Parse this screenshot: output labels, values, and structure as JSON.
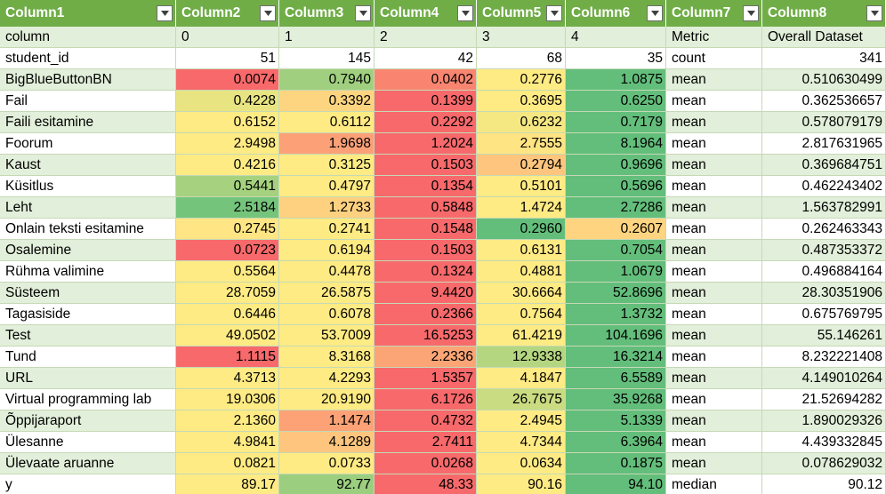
{
  "headers": [
    "Column1",
    "Column2",
    "Column3",
    "Column4",
    "Column5",
    "Column6",
    "Column7",
    "Column8"
  ],
  "rows": [
    [
      "column",
      "0",
      "1",
      "2",
      "3",
      "4",
      "Metric",
      "Overall Dataset"
    ],
    [
      "student_id",
      "51",
      "145",
      "42",
      "68",
      "35",
      "count",
      "341"
    ],
    [
      "BigBlueButtonBN",
      "0.0074",
      "0.7940",
      "0.0402",
      "0.2776",
      "1.0875",
      "mean",
      "0.510630499"
    ],
    [
      "Fail",
      "0.4228",
      "0.3392",
      "0.1399",
      "0.3695",
      "0.6250",
      "mean",
      "0.362536657"
    ],
    [
      "Faili esitamine",
      "0.6152",
      "0.6112",
      "0.2292",
      "0.6232",
      "0.7179",
      "mean",
      "0.578079179"
    ],
    [
      "Foorum",
      "2.9498",
      "1.9698",
      "1.2024",
      "2.7555",
      "8.1964",
      "mean",
      "2.817631965"
    ],
    [
      "Kaust",
      "0.4216",
      "0.3125",
      "0.1503",
      "0.2794",
      "0.9696",
      "mean",
      "0.369684751"
    ],
    [
      "Küsitlus",
      "0.5441",
      "0.4797",
      "0.1354",
      "0.5101",
      "0.5696",
      "mean",
      "0.462243402"
    ],
    [
      "Leht",
      "2.5184",
      "1.2733",
      "0.5848",
      "1.4724",
      "2.7286",
      "mean",
      "1.563782991"
    ],
    [
      "Onlain teksti esitamine",
      "0.2745",
      "0.2741",
      "0.1548",
      "0.2960",
      "0.2607",
      "mean",
      "0.262463343"
    ],
    [
      "Osalemine",
      "0.0723",
      "0.6194",
      "0.1503",
      "0.6131",
      "0.7054",
      "mean",
      "0.487353372"
    ],
    [
      "Rühma valimine",
      "0.5564",
      "0.4478",
      "0.1324",
      "0.4881",
      "1.0679",
      "mean",
      "0.496884164"
    ],
    [
      "Süsteem",
      "28.7059",
      "26.5875",
      "9.4420",
      "30.6664",
      "52.8696",
      "mean",
      "28.30351906"
    ],
    [
      "Tagasiside",
      "0.6446",
      "0.6078",
      "0.2366",
      "0.7564",
      "1.3732",
      "mean",
      "0.675769795"
    ],
    [
      "Test",
      "49.0502",
      "53.7009",
      "16.5253",
      "61.4219",
      "104.1696",
      "mean",
      "55.146261"
    ],
    [
      "Tund",
      "1.1115",
      "8.3168",
      "2.2336",
      "12.9338",
      "16.3214",
      "mean",
      "8.232221408"
    ],
    [
      "URL",
      "4.3713",
      "4.2293",
      "1.5357",
      "4.1847",
      "6.5589",
      "mean",
      "4.149010264"
    ],
    [
      "Virtual programming lab",
      "19.0306",
      "20.9190",
      "6.1726",
      "26.7675",
      "35.9268",
      "mean",
      "21.52694282"
    ],
    [
      "Õppijaraport",
      "2.1360",
      "1.1474",
      "0.4732",
      "2.4945",
      "5.1339",
      "mean",
      "1.890029326"
    ],
    [
      "Ülesanne",
      "4.9841",
      "4.1289",
      "2.7411",
      "4.7344",
      "6.3964",
      "mean",
      "4.439332845"
    ],
    [
      "Ülevaate aruanne",
      "0.0821",
      "0.0733",
      "0.0268",
      "0.0634",
      "0.1875",
      "mean",
      "0.078629032"
    ],
    [
      "y",
      "89.17",
      "92.77",
      "48.33",
      "90.16",
      "94.10",
      "median",
      "90.12"
    ]
  ],
  "heat_colors": [
    null,
    null,
    [
      "#f8696b",
      "#a0d07f",
      "#f98570",
      "#ffeb84",
      "#63be7b"
    ],
    [
      "#e8e482",
      "#fdd580",
      "#f8696b",
      "#ffeb84",
      "#63be7b"
    ],
    [
      "#ffeb84",
      "#ffeb84",
      "#f8696b",
      "#f5e883",
      "#63be7b"
    ],
    [
      "#ffeb84",
      "#fca077",
      "#f8696b",
      "#ffe483",
      "#63be7b"
    ],
    [
      "#ffeb84",
      "#ffeb84",
      "#f8696b",
      "#fdc57d",
      "#63be7b"
    ],
    [
      "#a6d27f",
      "#ffeb84",
      "#f8696b",
      "#ffeb84",
      "#63be7b"
    ],
    [
      "#75c47c",
      "#fdd17f",
      "#f8696b",
      "#ffeb84",
      "#63be7b"
    ],
    [
      "#ffe583",
      "#ffeb84",
      "#f8696b",
      "#63be7b",
      "#fed480"
    ],
    [
      "#f8696b",
      "#ffeb84",
      "#f8696b",
      "#ffeb84",
      "#63be7b"
    ],
    [
      "#ffeb84",
      "#ffeb84",
      "#f8696b",
      "#ffeb84",
      "#63be7b"
    ],
    [
      "#ffeb84",
      "#ffeb84",
      "#f8696b",
      "#ffeb84",
      "#63be7b"
    ],
    [
      "#ffeb84",
      "#ffeb84",
      "#f8696b",
      "#ffeb84",
      "#63be7b"
    ],
    [
      "#ffeb84",
      "#ffeb84",
      "#f8696b",
      "#ffeb84",
      "#63be7b"
    ],
    [
      "#f8696b",
      "#ffeb84",
      "#fba576",
      "#b5d680",
      "#63be7b"
    ],
    [
      "#ffeb84",
      "#ffeb84",
      "#f8696b",
      "#ffeb84",
      "#63be7b"
    ],
    [
      "#ffeb84",
      "#ffeb84",
      "#f8696b",
      "#c9dc81",
      "#63be7b"
    ],
    [
      "#ffeb84",
      "#fca276",
      "#f8696b",
      "#ffeb84",
      "#63be7b"
    ],
    [
      "#ffeb84",
      "#fdc57d",
      "#f8696b",
      "#ffeb84",
      "#63be7b"
    ],
    [
      "#ffeb84",
      "#ffeb84",
      "#f8696b",
      "#ffeb84",
      "#63be7b"
    ],
    [
      "#ffeb84",
      "#9bce7f",
      "#f8696b",
      "#ffeb84",
      "#63be7b"
    ]
  ],
  "colors": {
    "header_bg": "#70ad47",
    "band_light": "#e2efda",
    "band_white": "#ffffff",
    "grid": "#c6d9b6"
  },
  "icons": {
    "filter_button": "chevron-down-icon"
  }
}
